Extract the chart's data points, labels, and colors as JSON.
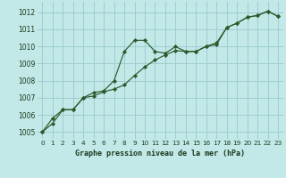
{
  "title": "Graphe pression niveau de la mer (hPa)",
  "bg_color": "#c2e8e8",
  "grid_color": "#9ecece",
  "line_color": "#2d5a2d",
  "marker_color": "#2d5a2d",
  "xlim": [
    -0.5,
    23.5
  ],
  "ylim": [
    1004.6,
    1012.6
  ],
  "yticks": [
    1005,
    1006,
    1007,
    1008,
    1009,
    1010,
    1011,
    1012
  ],
  "xticks": [
    0,
    1,
    2,
    3,
    4,
    5,
    6,
    7,
    8,
    9,
    10,
    11,
    12,
    13,
    14,
    15,
    16,
    17,
    18,
    19,
    20,
    21,
    22,
    23
  ],
  "series1_x": [
    0,
    1,
    2,
    3,
    4,
    5,
    6,
    7,
    8,
    9,
    10,
    11,
    12,
    13,
    14,
    15,
    16,
    17,
    18,
    19,
    20,
    21,
    22,
    23
  ],
  "series1_y": [
    1005.0,
    1005.8,
    1006.3,
    1006.3,
    1007.0,
    1007.3,
    1007.4,
    1008.0,
    1009.7,
    1010.35,
    1010.35,
    1009.7,
    1009.6,
    1009.98,
    1009.7,
    1009.7,
    1010.0,
    1010.1,
    1011.1,
    1011.35,
    1011.7,
    1011.8,
    1012.05,
    1011.75
  ],
  "series2_x": [
    0,
    1,
    2,
    3,
    4,
    5,
    6,
    7,
    8,
    9,
    10,
    11,
    12,
    13,
    14,
    15,
    16,
    17,
    18,
    19,
    20,
    21,
    22,
    23
  ],
  "series2_y": [
    1005.0,
    1005.5,
    1006.3,
    1006.3,
    1007.0,
    1007.1,
    1007.35,
    1007.5,
    1007.75,
    1008.3,
    1008.8,
    1009.2,
    1009.5,
    1009.75,
    1009.7,
    1009.7,
    1010.0,
    1010.2,
    1011.1,
    1011.35,
    1011.7,
    1011.8,
    1012.05,
    1011.75
  ]
}
